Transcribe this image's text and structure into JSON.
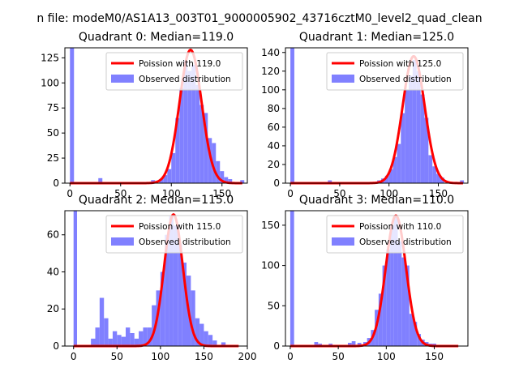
{
  "figure": {
    "title": "n file: modeM0/AS1A13_003T01_9000005902_43716cztM0_level2_quad_clean"
  },
  "colors": {
    "poisson_line": "#ff0000",
    "histogram": "#8080ff",
    "axes": "#000000",
    "background": "#ffffff"
  },
  "chart_data": [
    {
      "type": "bar+line",
      "title": "Quadrant 0: Median=119.0",
      "xlim": [
        -5,
        175
      ],
      "ylim": [
        0,
        135
      ],
      "xticks": [
        0,
        50,
        100,
        150
      ],
      "yticks": [
        0,
        25,
        50,
        75,
        100,
        125
      ],
      "grid": false,
      "legend": {
        "placement": "top-right",
        "entries": [
          "Poission with 119.0",
          "Observed distribution"
        ]
      },
      "series": [
        {
          "name": "Observed distribution",
          "kind": "histogram",
          "bins": [
            {
              "x0": 0,
              "x1": 4,
              "count": 135
            },
            {
              "x0": 28,
              "x1": 32,
              "count": 5
            },
            {
              "x0": 80,
              "x1": 84,
              "count": 3
            },
            {
              "x0": 88,
              "x1": 92,
              "count": 4
            },
            {
              "x0": 92,
              "x1": 96,
              "count": 8
            },
            {
              "x0": 96,
              "x1": 100,
              "count": 14
            },
            {
              "x0": 100,
              "x1": 104,
              "count": 30
            },
            {
              "x0": 104,
              "x1": 108,
              "count": 65
            },
            {
              "x0": 108,
              "x1": 112,
              "count": 95
            },
            {
              "x0": 112,
              "x1": 116,
              "count": 122
            },
            {
              "x0": 116,
              "x1": 120,
              "count": 112
            },
            {
              "x0": 120,
              "x1": 124,
              "count": 118
            },
            {
              "x0": 124,
              "x1": 128,
              "count": 98
            },
            {
              "x0": 128,
              "x1": 132,
              "count": 78
            },
            {
              "x0": 132,
              "x1": 136,
              "count": 70
            },
            {
              "x0": 136,
              "x1": 140,
              "count": 45
            },
            {
              "x0": 140,
              "x1": 144,
              "count": 40
            },
            {
              "x0": 144,
              "x1": 148,
              "count": 22
            },
            {
              "x0": 148,
              "x1": 152,
              "count": 12
            },
            {
              "x0": 152,
              "x1": 156,
              "count": 6
            },
            {
              "x0": 156,
              "x1": 160,
              "count": 4
            },
            {
              "x0": 168,
              "x1": 172,
              "count": 3
            }
          ]
        },
        {
          "name": "Poission with 119.0",
          "kind": "poisson",
          "mean": 119.0,
          "peak": 133,
          "x_range": [
            0,
            170
          ]
        }
      ]
    },
    {
      "type": "bar+line",
      "title": "Quadrant 1: Median=125.0",
      "xlim": [
        -5,
        180
      ],
      "ylim": [
        0,
        145
      ],
      "xticks": [
        0,
        50,
        100,
        150
      ],
      "yticks": [
        0,
        20,
        40,
        60,
        80,
        100,
        120,
        140
      ],
      "grid": false,
      "legend": {
        "placement": "top-right",
        "entries": [
          "Poission with 125.0",
          "Observed distribution"
        ]
      },
      "series": [
        {
          "name": "Observed distribution",
          "kind": "histogram",
          "bins": [
            {
              "x0": 0,
              "x1": 4,
              "count": 145
            },
            {
              "x0": 38,
              "x1": 42,
              "count": 3
            },
            {
              "x0": 88,
              "x1": 92,
              "count": 3
            },
            {
              "x0": 92,
              "x1": 96,
              "count": 5
            },
            {
              "x0": 96,
              "x1": 100,
              "count": 8
            },
            {
              "x0": 100,
              "x1": 104,
              "count": 15
            },
            {
              "x0": 104,
              "x1": 108,
              "count": 28
            },
            {
              "x0": 108,
              "x1": 112,
              "count": 42
            },
            {
              "x0": 112,
              "x1": 116,
              "count": 75
            },
            {
              "x0": 116,
              "x1": 120,
              "count": 100
            },
            {
              "x0": 120,
              "x1": 124,
              "count": 115
            },
            {
              "x0": 124,
              "x1": 128,
              "count": 132
            },
            {
              "x0": 128,
              "x1": 132,
              "count": 120
            },
            {
              "x0": 132,
              "x1": 136,
              "count": 95
            },
            {
              "x0": 136,
              "x1": 140,
              "count": 70
            },
            {
              "x0": 140,
              "x1": 144,
              "count": 30
            },
            {
              "x0": 144,
              "x1": 148,
              "count": 18
            },
            {
              "x0": 148,
              "x1": 152,
              "count": 10
            },
            {
              "x0": 152,
              "x1": 156,
              "count": 6
            },
            {
              "x0": 172,
              "x1": 176,
              "count": 3
            }
          ]
        },
        {
          "name": "Poission with 125.0",
          "kind": "poisson",
          "mean": 125.0,
          "peak": 136,
          "x_range": [
            0,
            175
          ]
        }
      ]
    },
    {
      "type": "bar+line",
      "title": "Quadrant 2: Median=115.0",
      "xlim": [
        -10,
        200
      ],
      "ylim": [
        0,
        73
      ],
      "xticks": [
        0,
        50,
        100,
        150,
        200
      ],
      "yticks": [
        0,
        20,
        40,
        60
      ],
      "grid": false,
      "legend": {
        "placement": "top-right",
        "entries": [
          "Poission with 115.0",
          "Observed distribution"
        ]
      },
      "series": [
        {
          "name": "Observed distribution",
          "kind": "histogram",
          "bins": [
            {
              "x0": 0,
              "x1": 4,
              "count": 73
            },
            {
              "x0": 20,
              "x1": 25,
              "count": 4
            },
            {
              "x0": 25,
              "x1": 30,
              "count": 10
            },
            {
              "x0": 30,
              "x1": 35,
              "count": 26
            },
            {
              "x0": 35,
              "x1": 40,
              "count": 15
            },
            {
              "x0": 40,
              "x1": 45,
              "count": 4
            },
            {
              "x0": 45,
              "x1": 50,
              "count": 8
            },
            {
              "x0": 50,
              "x1": 55,
              "count": 6
            },
            {
              "x0": 55,
              "x1": 60,
              "count": 5
            },
            {
              "x0": 60,
              "x1": 65,
              "count": 10
            },
            {
              "x0": 65,
              "x1": 70,
              "count": 7
            },
            {
              "x0": 70,
              "x1": 75,
              "count": 4
            },
            {
              "x0": 75,
              "x1": 80,
              "count": 8
            },
            {
              "x0": 80,
              "x1": 85,
              "count": 10
            },
            {
              "x0": 85,
              "x1": 90,
              "count": 10
            },
            {
              "x0": 90,
              "x1": 95,
              "count": 22
            },
            {
              "x0": 95,
              "x1": 100,
              "count": 30
            },
            {
              "x0": 100,
              "x1": 105,
              "count": 40
            },
            {
              "x0": 105,
              "x1": 110,
              "count": 60
            },
            {
              "x0": 110,
              "x1": 115,
              "count": 70
            },
            {
              "x0": 115,
              "x1": 120,
              "count": 65
            },
            {
              "x0": 120,
              "x1": 125,
              "count": 55
            },
            {
              "x0": 125,
              "x1": 130,
              "count": 45
            },
            {
              "x0": 130,
              "x1": 135,
              "count": 38
            },
            {
              "x0": 135,
              "x1": 140,
              "count": 30
            },
            {
              "x0": 140,
              "x1": 145,
              "count": 15
            },
            {
              "x0": 145,
              "x1": 150,
              "count": 12
            },
            {
              "x0": 150,
              "x1": 155,
              "count": 8
            },
            {
              "x0": 155,
              "x1": 160,
              "count": 6
            },
            {
              "x0": 160,
              "x1": 165,
              "count": 3
            },
            {
              "x0": 170,
              "x1": 175,
              "count": 2
            }
          ]
        },
        {
          "name": "Poission with 115.0",
          "kind": "poisson",
          "mean": 115.0,
          "peak": 71,
          "x_range": [
            0,
            190
          ]
        }
      ]
    },
    {
      "type": "bar+line",
      "title": "Quadrant 3: Median=110.0",
      "xlim": [
        -5,
        185
      ],
      "ylim": [
        0,
        168
      ],
      "xticks": [
        0,
        50,
        100,
        150
      ],
      "yticks": [
        0,
        50,
        100,
        150
      ],
      "grid": false,
      "legend": {
        "placement": "top-right",
        "entries": [
          "Poission with 110.0",
          "Observed distribution"
        ]
      },
      "series": [
        {
          "name": "Observed distribution",
          "kind": "histogram",
          "bins": [
            {
              "x0": 0,
              "x1": 4,
              "count": 168
            },
            {
              "x0": 25,
              "x1": 29,
              "count": 5
            },
            {
              "x0": 29,
              "x1": 33,
              "count": 3
            },
            {
              "x0": 40,
              "x1": 44,
              "count": 3
            },
            {
              "x0": 60,
              "x1": 64,
              "count": 4
            },
            {
              "x0": 64,
              "x1": 68,
              "count": 6
            },
            {
              "x0": 70,
              "x1": 74,
              "count": 4
            },
            {
              "x0": 76,
              "x1": 80,
              "count": 5
            },
            {
              "x0": 80,
              "x1": 84,
              "count": 10
            },
            {
              "x0": 84,
              "x1": 88,
              "count": 20
            },
            {
              "x0": 88,
              "x1": 92,
              "count": 45
            },
            {
              "x0": 92,
              "x1": 96,
              "count": 65
            },
            {
              "x0": 96,
              "x1": 100,
              "count": 100
            },
            {
              "x0": 100,
              "x1": 104,
              "count": 120
            },
            {
              "x0": 104,
              "x1": 108,
              "count": 150
            },
            {
              "x0": 108,
              "x1": 112,
              "count": 160
            },
            {
              "x0": 112,
              "x1": 116,
              "count": 130
            },
            {
              "x0": 116,
              "x1": 120,
              "count": 110
            },
            {
              "x0": 120,
              "x1": 124,
              "count": 100
            },
            {
              "x0": 124,
              "x1": 128,
              "count": 40
            },
            {
              "x0": 128,
              "x1": 132,
              "count": 30
            },
            {
              "x0": 132,
              "x1": 136,
              "count": 15
            },
            {
              "x0": 136,
              "x1": 140,
              "count": 8
            },
            {
              "x0": 140,
              "x1": 144,
              "count": 5
            },
            {
              "x0": 144,
              "x1": 148,
              "count": 3
            },
            {
              "x0": 148,
              "x1": 152,
              "count": 3
            }
          ]
        },
        {
          "name": "Poission with 110.0",
          "kind": "poisson",
          "mean": 110.0,
          "peak": 162,
          "x_range": [
            0,
            175
          ]
        }
      ]
    }
  ]
}
